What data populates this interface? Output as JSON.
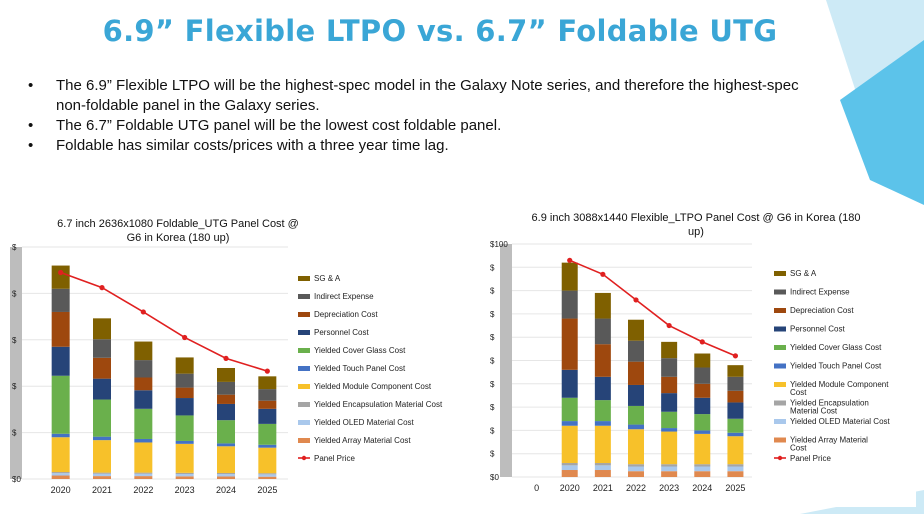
{
  "slide": {
    "title": "6.9” Flexible LTPO vs. 6.7” Foldable UTG",
    "bullets": [
      "The 6.9” Flexible LTPO will be the highest-spec model in the Galaxy Note series, and therefore the highest-spec non-foldable panel in the Galaxy series.",
      "The 6.7” Foldable UTG panel will be the lowest cost foldable panel.",
      "Foldable has similar costs/prices with a three year time lag."
    ],
    "colors": {
      "title": "#3aa6d6",
      "accent_light": "#cdeaf6",
      "accent": "#5cc3ea"
    }
  },
  "chart_data": [
    {
      "type": "bar",
      "stacked": true,
      "title": "6.7 inch 2636x1080 Foldable_UTG Panel Cost @ G6  in Korea (180 up)",
      "categories": [
        "2020",
        "2021",
        "2022",
        "2023",
        "2024",
        "2025"
      ],
      "y_tick_labels": [
        "$0",
        "$",
        "$",
        "$",
        "$",
        "$"
      ],
      "series": [
        {
          "name": "Yielded Array Material Cost",
          "color": "#e0894f",
          "values": [
            3,
            2.5,
            2.5,
            2.3,
            2.2,
            2
          ]
        },
        {
          "name": "Yielded OLED Material Cost",
          "color": "#a9c8ec",
          "values": [
            2,
            2,
            2,
            2,
            2,
            2
          ]
        },
        {
          "name": "Yielded Encapsulation Material Cost",
          "color": "#a5a5a5",
          "values": [
            1,
            1,
            1,
            1,
            1,
            1
          ]
        },
        {
          "name": "Yielded Module Component Cost",
          "color": "#f7c12a",
          "values": [
            30,
            28,
            26,
            25,
            23,
            22
          ]
        },
        {
          "name": "Yielded Touch Panel Cost",
          "color": "#4472c4",
          "values": [
            3,
            3,
            3,
            2.5,
            2.5,
            2.5
          ]
        },
        {
          "name": "Yielded Cover Glass Cost",
          "color": "#6ab04c",
          "values": [
            50,
            32,
            26,
            22,
            20,
            18
          ]
        },
        {
          "name": "Personnel Cost",
          "color": "#264478",
          "values": [
            25,
            18,
            16,
            15,
            14,
            13
          ]
        },
        {
          "name": "Depreciation Cost",
          "color": "#9e480e",
          "values": [
            30,
            18,
            11,
            9,
            8,
            7
          ]
        },
        {
          "name": "Indirect Expense",
          "color": "#595959",
          "values": [
            20,
            16,
            15,
            12,
            11,
            10
          ]
        },
        {
          "name": "SG & A",
          "color": "#7f6000",
          "values": [
            20,
            18,
            16,
            14,
            12,
            11
          ]
        }
      ],
      "panel_price": {
        "name": "Panel Price",
        "color": "#e02020",
        "values": [
          178,
          165,
          144,
          122,
          104,
          93
        ]
      },
      "ylim": [
        0,
        200
      ]
    },
    {
      "type": "bar",
      "stacked": true,
      "title": "6.9 inch 3088x1440 Flexible_LTPO Panel Cost @ G6  in Korea (180 up)",
      "categories": [
        "0",
        "2020",
        "2021",
        "2022",
        "2023",
        "2024",
        "2025"
      ],
      "y_tick_labels": [
        "$0",
        "$",
        "$",
        "$",
        "$",
        "$",
        "$",
        "$",
        "$",
        "$",
        "$100"
      ],
      "series": [
        {
          "name": "Yielded Array Material Cost",
          "color": "#e0894f",
          "values": [
            0,
            3,
            3,
            2.5,
            2.5,
            2.5,
            2.5
          ]
        },
        {
          "name": "Yielded OLED Material Cost",
          "color": "#a9c8ec",
          "values": [
            0,
            2,
            2,
            2,
            2,
            2,
            2
          ]
        },
        {
          "name": "Yielded Encapsulation Material Cost",
          "color": "#a5a5a5",
          "values": [
            0,
            1,
            1,
            1,
            1,
            1,
            1
          ]
        },
        {
          "name": "Yielded Module Component Cost",
          "color": "#f7c12a",
          "values": [
            0,
            16,
            16,
            15,
            14,
            13,
            12
          ]
        },
        {
          "name": "Yielded Touch Panel Cost",
          "color": "#4472c4",
          "values": [
            0,
            2,
            2,
            2,
            1.5,
            1.5,
            1.5
          ]
        },
        {
          "name": "Yielded Cover Glass Cost",
          "color": "#6ab04c",
          "values": [
            0,
            10,
            9,
            8,
            7,
            7,
            6
          ]
        },
        {
          "name": "Personnel Cost",
          "color": "#264478",
          "values": [
            0,
            12,
            10,
            9,
            8,
            7,
            7
          ]
        },
        {
          "name": "Depreciation Cost",
          "color": "#9e480e",
          "values": [
            0,
            22,
            14,
            10,
            7,
            6,
            5
          ]
        },
        {
          "name": "Indirect Expense",
          "color": "#595959",
          "values": [
            0,
            12,
            11,
            9,
            8,
            7,
            6
          ]
        },
        {
          "name": "SG & A",
          "color": "#7f6000",
          "values": [
            0,
            12,
            11,
            9,
            7,
            6,
            5
          ]
        }
      ],
      "panel_price": {
        "name": "Panel Price",
        "color": "#e02020",
        "values": [
          null,
          93,
          87,
          76,
          65,
          58,
          52
        ]
      },
      "ylim": [
        0,
        100
      ]
    }
  ]
}
